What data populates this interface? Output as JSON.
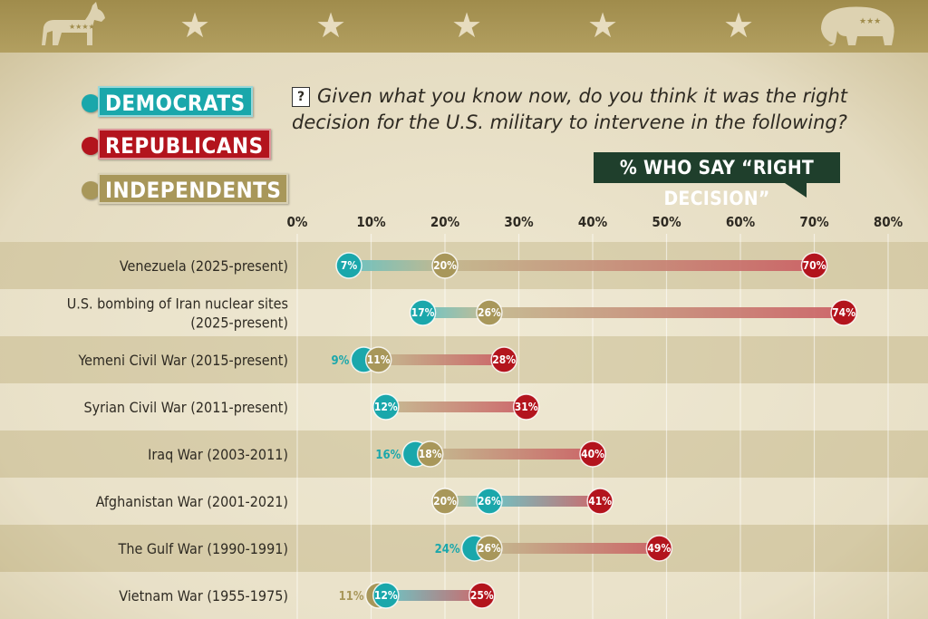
{
  "legend": {
    "democrats": "DEMOCRATS",
    "republicans": "REPUBLICANS",
    "independents": "INDEPENDENTS"
  },
  "question": "Given what you know now, do you think it was the right decision for the U.S. military to intervene in the following?",
  "question_icon": "?",
  "tag_label": "% WHO SAY “RIGHT DECISION”",
  "colors": {
    "democrats": "#1aa7ab",
    "republicans": "#b3141d",
    "independents": "#a8975a",
    "banner": "#a89655",
    "tag": "#1f3f2c"
  },
  "chart_data": {
    "type": "dot",
    "x_ticks": [
      "0%",
      "10%",
      "20%",
      "30%",
      "40%",
      "50%",
      "60%",
      "70%",
      "80%"
    ],
    "xlim": [
      0,
      80
    ],
    "categories": [
      "Venezuela (2025-present)",
      "U.S. bombing of Iran nuclear sites (2025-present)",
      "Yemeni Civil War (2015-present)",
      "Syrian Civil War (2011-present)",
      "Iraq War (2003-2011)",
      "Afghanistan War (2001-2021)",
      "The Gulf War (1990-1991)",
      "Vietnam War (1955-1975)"
    ],
    "category_lines": [
      [
        "Venezuela (2025-present)"
      ],
      [
        "U.S. bombing of Iran nuclear sites",
        "(2025-present)"
      ],
      [
        "Yemeni Civil War (2015-present)"
      ],
      [
        "Syrian Civil War (2011-present)"
      ],
      [
        "Iraq War (2003-2011)"
      ],
      [
        "Afghanistan War (2001-2021)"
      ],
      [
        "The Gulf War (1990-1991)"
      ],
      [
        "Vietnam War (1955-1975)"
      ]
    ],
    "series": [
      {
        "name": "DEMOCRATS",
        "key": "democrats",
        "values": [
          7,
          17,
          9,
          12,
          16,
          26,
          24,
          12
        ]
      },
      {
        "name": "INDEPENDENTS",
        "key": "independents",
        "values": [
          20,
          26,
          11,
          12,
          18,
          20,
          26,
          11
        ]
      },
      {
        "name": "REPUBLICANS",
        "key": "republicans",
        "values": [
          70,
          74,
          28,
          31,
          40,
          41,
          49,
          25
        ]
      }
    ],
    "point_labels": {
      "democrats": [
        "7%",
        "17%",
        "9%",
        "12%",
        "16%",
        "26%",
        "24%",
        "12%"
      ],
      "independents": [
        "20%",
        "26%",
        "11%",
        "",
        "18%",
        "20%",
        "26%",
        "11%"
      ],
      "republicans": [
        "70%",
        "74%",
        "28%",
        "31%",
        "40%",
        "41%",
        "49%",
        "25%"
      ]
    },
    "grid": true
  }
}
